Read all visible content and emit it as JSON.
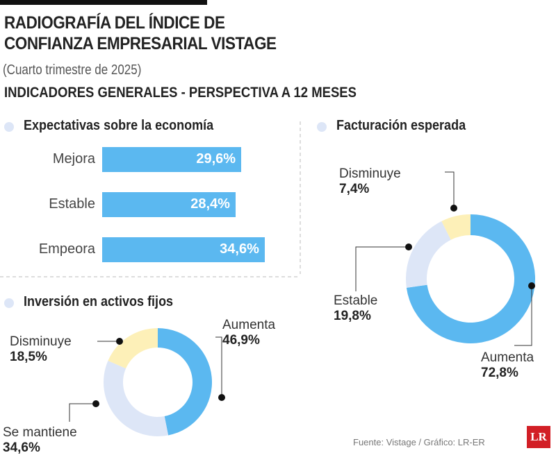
{
  "title_line1": "RADIOGRAFÍA DEL ÍNDICE DE",
  "title_line2": "CONFIANZA EMPRESARIAL VISTAGE",
  "subtitle": "(Cuarto trimestre de 2025)",
  "section": "INDICADORES GENERALES - PERSPECTIVA A 12 MESES",
  "source": "Fuente: Vistage / Gráfico: LR-ER",
  "logo_text": "LR",
  "colors": {
    "blue": "#5bb8f0",
    "light": "#dde6f7",
    "yellow": "#fdf0b8",
    "logo": "#d21f26"
  },
  "chart_data": [
    {
      "type": "bar",
      "title": "Expectativas sobre la economía",
      "orientation": "horizontal",
      "categories": [
        "Mejora",
        "Estable",
        "Empeora"
      ],
      "values": [
        29.6,
        28.4,
        34.6
      ],
      "labels": [
        "29,6%",
        "28,4%",
        "34,6%"
      ]
    },
    {
      "type": "pie",
      "donut": true,
      "title": "Facturación esperada",
      "categories": [
        "Aumenta",
        "Estable",
        "Disminuye"
      ],
      "values": [
        72.8,
        19.8,
        7.4
      ],
      "labels": [
        "72,8%",
        "19,8%",
        "7,4%"
      ]
    },
    {
      "type": "pie",
      "donut": true,
      "title": "Inversión en activos fijos",
      "categories": [
        "Aumenta",
        "Se mantiene",
        "Disminuye"
      ],
      "values": [
        46.9,
        34.6,
        18.5
      ],
      "labels": [
        "46,9%",
        "34,6%",
        "18,5%"
      ]
    }
  ]
}
